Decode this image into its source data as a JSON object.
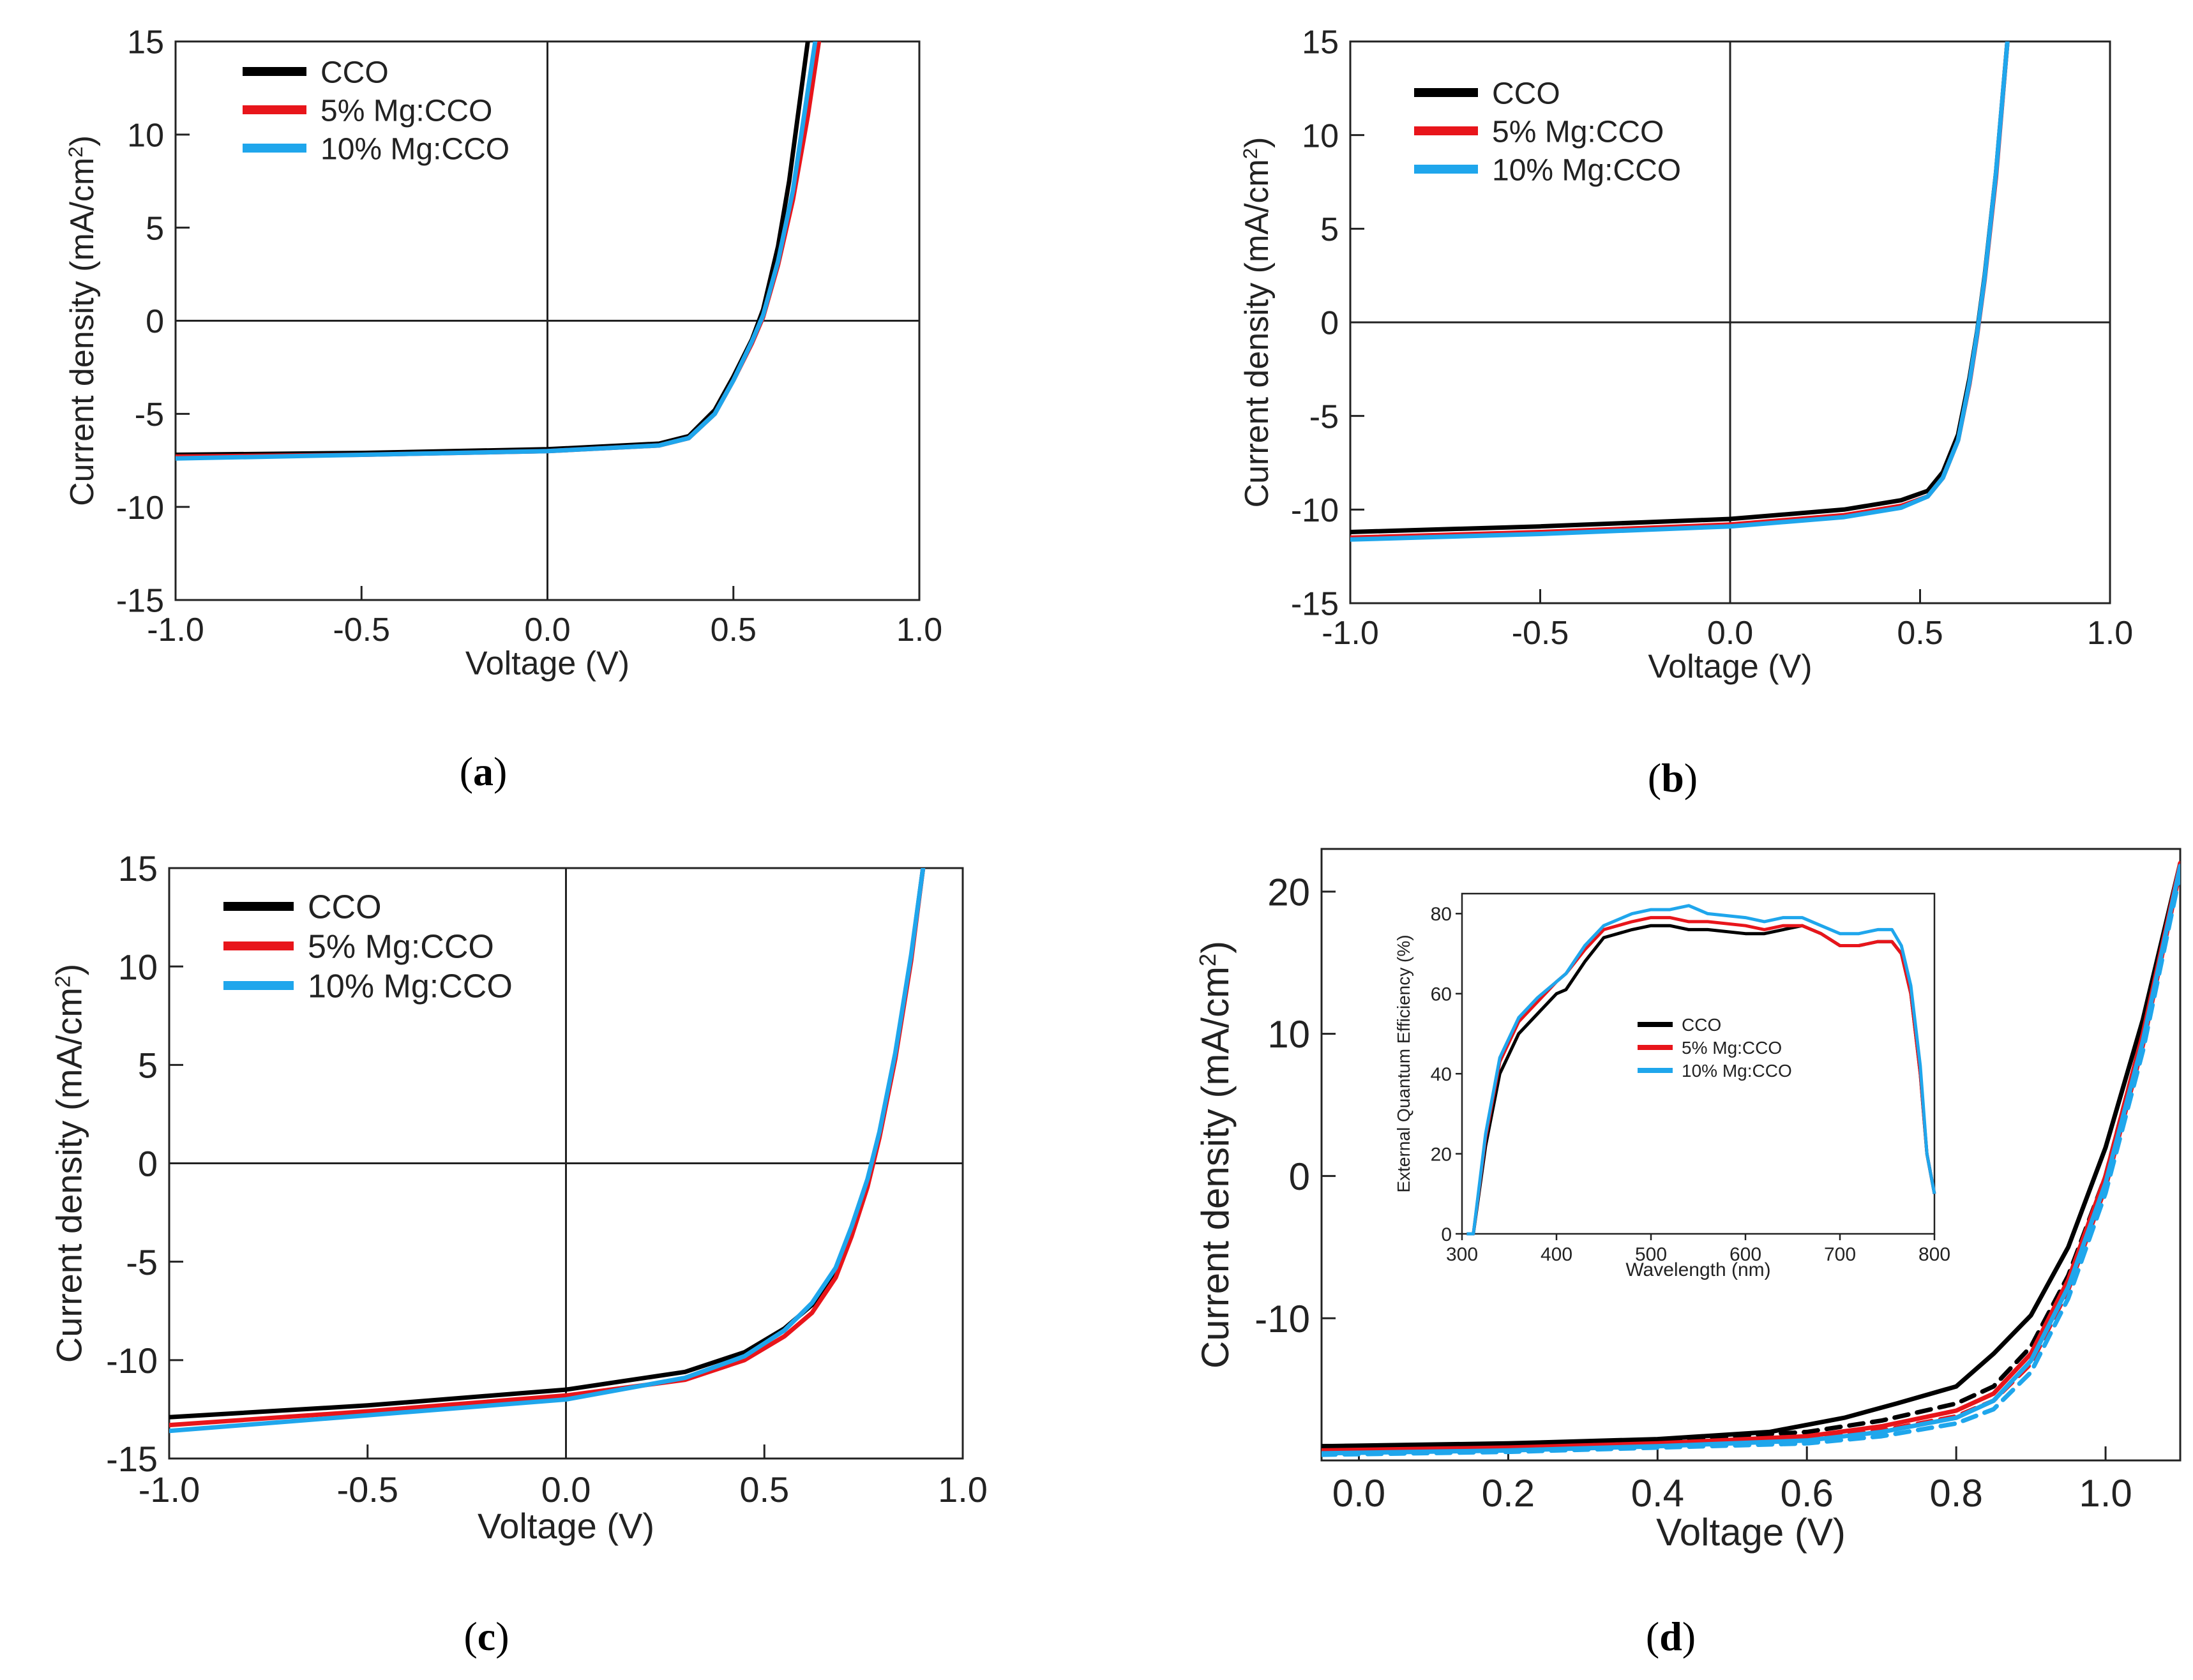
{
  "colors": {
    "CCO": "#000000",
    "Mg5": "#e8151b",
    "Mg10": "#1fa6ec",
    "axis": "#222222"
  },
  "chart_data": [
    {
      "panel": "a",
      "caption_letter": "a",
      "type": "line",
      "xlabel": "Voltage (V)",
      "ylabel": "Current density (mA/cm",
      "ylabel_sup": "2",
      "ylabel_close": ")",
      "xlim": [
        -1.0,
        1.0
      ],
      "ylim": [
        -15,
        15
      ],
      "xticks": [
        "-1.0",
        "-0.5",
        "0.0",
        "0.5",
        "1.0"
      ],
      "yticks": [
        "-15",
        "-10",
        "-5",
        "0",
        "5",
        "10",
        "15"
      ],
      "legend": [
        "CCO",
        "5% Mg:CCO",
        "10% Mg:CCO"
      ],
      "series": [
        {
          "name": "CCO",
          "color_key": "CCO",
          "x": [
            -1.0,
            -0.5,
            0.0,
            0.3,
            0.38,
            0.45,
            0.5,
            0.55,
            0.58,
            0.62,
            0.65,
            0.68,
            0.7
          ],
          "y": [
            -7.2,
            -7.1,
            -6.9,
            -6.6,
            -6.2,
            -4.8,
            -3.0,
            -1.0,
            0.6,
            4.0,
            7.5,
            12.0,
            15.0
          ]
        },
        {
          "name": "5% Mg:CCO",
          "color_key": "Mg5",
          "x": [
            -1.0,
            -0.5,
            0.0,
            0.3,
            0.38,
            0.45,
            0.5,
            0.55,
            0.58,
            0.62,
            0.66,
            0.7,
            0.73
          ],
          "y": [
            -7.3,
            -7.2,
            -7.0,
            -6.7,
            -6.3,
            -5.0,
            -3.2,
            -1.2,
            0.2,
            3.0,
            6.5,
            11.0,
            15.0
          ]
        },
        {
          "name": "10% Mg:CCO",
          "color_key": "Mg10",
          "x": [
            -1.0,
            -0.5,
            0.0,
            0.3,
            0.38,
            0.45,
            0.5,
            0.55,
            0.58,
            0.62,
            0.66,
            0.69,
            0.72
          ],
          "y": [
            -7.4,
            -7.2,
            -7.0,
            -6.7,
            -6.3,
            -5.0,
            -3.2,
            -1.1,
            0.3,
            3.2,
            7.0,
            11.0,
            15.0
          ]
        }
      ]
    },
    {
      "panel": "b",
      "caption_letter": "b",
      "type": "line",
      "xlabel": "Voltage (V)",
      "ylabel": "Current density (mA/cm",
      "ylabel_sup": "2",
      "ylabel_close": ")",
      "xlim": [
        -1.0,
        1.0
      ],
      "ylim": [
        -15,
        15
      ],
      "xticks": [
        "-1.0",
        "-0.5",
        "0.0",
        "0.5",
        "1.0"
      ],
      "yticks": [
        "-15",
        "-10",
        "-5",
        "0",
        "5",
        "10",
        "15"
      ],
      "legend": [
        "CCO",
        "5% Mg:CCO",
        "10% Mg:CCO"
      ],
      "series": [
        {
          "name": "CCO",
          "color_key": "CCO",
          "x": [
            -1.0,
            -0.5,
            0.0,
            0.3,
            0.45,
            0.52,
            0.56,
            0.6,
            0.63,
            0.65,
            0.67,
            0.7,
            0.73
          ],
          "y": [
            -11.2,
            -10.9,
            -10.5,
            -10.0,
            -9.5,
            -9.0,
            -8.0,
            -6.0,
            -3.0,
            -0.5,
            2.5,
            8.0,
            15.0
          ]
        },
        {
          "name": "5% Mg:CCO",
          "color_key": "Mg5",
          "x": [
            -1.0,
            -0.5,
            0.0,
            0.3,
            0.45,
            0.52,
            0.56,
            0.6,
            0.63,
            0.65,
            0.67,
            0.7,
            0.73
          ],
          "y": [
            -11.5,
            -11.2,
            -10.8,
            -10.3,
            -9.8,
            -9.3,
            -8.3,
            -6.3,
            -3.3,
            -0.7,
            2.3,
            7.8,
            15.0
          ]
        },
        {
          "name": "10% Mg:CCO",
          "color_key": "Mg10",
          "x": [
            -1.0,
            -0.5,
            0.0,
            0.3,
            0.45,
            0.52,
            0.56,
            0.6,
            0.63,
            0.65,
            0.67,
            0.7,
            0.73
          ],
          "y": [
            -11.6,
            -11.3,
            -10.9,
            -10.4,
            -9.9,
            -9.3,
            -8.3,
            -6.3,
            -3.2,
            -0.6,
            2.4,
            8.0,
            15.0
          ]
        }
      ]
    },
    {
      "panel": "c",
      "caption_letter": "c",
      "type": "line",
      "xlabel": "Voltage (V)",
      "ylabel": "Current density (mA/cm",
      "ylabel_sup": "2",
      "ylabel_close": ")",
      "xlim": [
        -1.0,
        1.0
      ],
      "ylim": [
        -15,
        15
      ],
      "xticks": [
        "-1.0",
        "-0.5",
        "0.0",
        "0.5",
        "1.0"
      ],
      "yticks": [
        "-15",
        "-10",
        "-5",
        "0",
        "5",
        "10",
        "15"
      ],
      "legend": [
        "CCO",
        "5% Mg:CCO",
        "10% Mg:CCO"
      ],
      "series": [
        {
          "name": "CCO",
          "color_key": "CCO",
          "x": [
            -1.0,
            -0.5,
            0.0,
            0.3,
            0.45,
            0.55,
            0.62,
            0.68,
            0.72,
            0.76,
            0.79,
            0.83,
            0.87,
            0.9
          ],
          "y": [
            -12.9,
            -12.3,
            -11.5,
            -10.6,
            -9.6,
            -8.4,
            -7.2,
            -5.5,
            -3.5,
            -1.0,
            1.5,
            5.5,
            10.5,
            15.0
          ]
        },
        {
          "name": "5% Mg:CCO",
          "color_key": "Mg5",
          "x": [
            -1.0,
            -0.5,
            0.0,
            0.3,
            0.45,
            0.55,
            0.62,
            0.68,
            0.72,
            0.76,
            0.79,
            0.83,
            0.87,
            0.9
          ],
          "y": [
            -13.3,
            -12.6,
            -11.8,
            -11.0,
            -10.0,
            -8.8,
            -7.6,
            -5.8,
            -3.7,
            -1.2,
            1.3,
            5.3,
            10.3,
            15.0
          ]
        },
        {
          "name": "10% Mg:CCO",
          "color_key": "Mg10",
          "x": [
            -1.0,
            -0.5,
            0.0,
            0.3,
            0.45,
            0.55,
            0.62,
            0.68,
            0.72,
            0.76,
            0.79,
            0.83,
            0.87,
            0.9
          ],
          "y": [
            -13.6,
            -12.8,
            -12.0,
            -10.9,
            -9.8,
            -8.5,
            -7.1,
            -5.3,
            -3.2,
            -0.8,
            1.6,
            5.6,
            10.6,
            15.0
          ]
        }
      ]
    },
    {
      "panel": "d",
      "caption_letter": "d",
      "type": "line",
      "xlabel": "Voltage (V)",
      "ylabel": "Current density (mA/cm",
      "ylabel_sup": "2",
      "ylabel_close": ")",
      "xlim": [
        -0.05,
        1.1
      ],
      "ylim": [
        -20,
        23
      ],
      "xticks": [
        "0.0",
        "0.2",
        "0.4",
        "0.6",
        "0.8",
        "1.0"
      ],
      "xtick_values": [
        0.0,
        0.2,
        0.4,
        0.6,
        0.8,
        1.0
      ],
      "yticks": [
        "-10",
        "0",
        "10",
        "20"
      ],
      "ytick_values": [
        -10,
        0,
        10,
        20
      ],
      "series": [
        {
          "name": "CCO",
          "color_key": "CCO",
          "dash": false,
          "x": [
            -0.05,
            0.2,
            0.4,
            0.55,
            0.65,
            0.72,
            0.8,
            0.85,
            0.9,
            0.95,
            1.0,
            1.05,
            1.1
          ],
          "y": [
            -19.0,
            -18.8,
            -18.5,
            -18.0,
            -17.0,
            -16.0,
            -14.8,
            -12.5,
            -9.8,
            -5.0,
            2.0,
            11.0,
            22.0
          ]
        },
        {
          "name": "CCO dashed",
          "color_key": "CCO",
          "dash": true,
          "x": [
            -0.05,
            0.2,
            0.4,
            0.6,
            0.7,
            0.8,
            0.85,
            0.9,
            0.95,
            1.0,
            1.05,
            1.1
          ],
          "y": [
            -19.0,
            -18.9,
            -18.6,
            -18.0,
            -17.2,
            -16.0,
            -14.8,
            -12.0,
            -7.0,
            0.0,
            10.0,
            22.0
          ]
        },
        {
          "name": "5% Mg:CCO",
          "color_key": "Mg5",
          "dash": false,
          "x": [
            -0.05,
            0.2,
            0.4,
            0.6,
            0.7,
            0.8,
            0.85,
            0.9,
            0.95,
            1.0,
            1.05,
            1.1
          ],
          "y": [
            -19.3,
            -19.1,
            -18.8,
            -18.3,
            -17.6,
            -16.5,
            -15.3,
            -12.5,
            -7.3,
            0.0,
            10.0,
            22.0
          ]
        },
        {
          "name": "5% Mg:CCO dashed",
          "color_key": "Mg5",
          "dash": true,
          "x": [
            -0.05,
            0.2,
            0.4,
            0.6,
            0.7,
            0.8,
            0.85,
            0.9,
            0.95,
            1.0,
            1.05,
            1.1
          ],
          "y": [
            -19.4,
            -19.2,
            -18.9,
            -18.5,
            -17.9,
            -16.9,
            -15.8,
            -13.2,
            -8.0,
            -0.8,
            9.2,
            21.5
          ]
        },
        {
          "name": "10% Mg:CCO",
          "color_key": "Mg10",
          "dash": false,
          "x": [
            -0.05,
            0.2,
            0.4,
            0.6,
            0.7,
            0.8,
            0.85,
            0.9,
            0.95,
            1.0,
            1.05,
            1.1
          ],
          "y": [
            -19.5,
            -19.3,
            -19.0,
            -18.6,
            -18.0,
            -17.0,
            -15.8,
            -13.0,
            -7.8,
            -0.5,
            9.5,
            21.8
          ]
        },
        {
          "name": "10% Mg:CCO dashed",
          "color_key": "Mg10",
          "dash": true,
          "x": [
            -0.05,
            0.2,
            0.4,
            0.6,
            0.7,
            0.8,
            0.85,
            0.9,
            0.95,
            1.0,
            1.05,
            1.1
          ],
          "y": [
            -19.6,
            -19.4,
            -19.1,
            -18.8,
            -18.3,
            -17.4,
            -16.4,
            -13.8,
            -8.6,
            -1.2,
            8.8,
            21.3
          ]
        }
      ],
      "inset": {
        "type": "line",
        "xlabel": "Wavelength (nm)",
        "ylabel": "External Quantum Efficiency (%)",
        "xlim": [
          300,
          800
        ],
        "ylim": [
          0,
          85
        ],
        "xticks": [
          "300",
          "400",
          "500",
          "600",
          "700",
          "800"
        ],
        "xtick_values": [
          300,
          400,
          500,
          600,
          700,
          800
        ],
        "yticks": [
          "0",
          "20",
          "40",
          "60",
          "80"
        ],
        "ytick_values": [
          0,
          20,
          40,
          60,
          80
        ],
        "legend": [
          "CCO",
          "5% Mg:CCO",
          "10% Mg:CCO"
        ],
        "series": [
          {
            "name": "CCO",
            "color_key": "CCO",
            "x": [
              305,
              312,
              325,
              340,
              360,
              380,
              400,
              410,
              430,
              450,
              480,
              500,
              520,
              540,
              560,
              600,
              620,
              640,
              660,
              680,
              700,
              720,
              740,
              755,
              765,
              775,
              785,
              792,
              800
            ],
            "y": [
              0,
              0,
              22,
              40,
              50,
              55,
              60,
              61,
              68,
              74,
              76,
              77,
              77,
              76,
              76,
              75,
              75,
              76,
              77,
              75,
              72,
              72,
              73,
              73,
              70,
              60,
              40,
              20,
              10
            ]
          },
          {
            "name": "5% Mg:CCO",
            "color_key": "Mg5",
            "x": [
              305,
              312,
              325,
              340,
              360,
              380,
              400,
              410,
              430,
              450,
              480,
              500,
              520,
              540,
              560,
              600,
              620,
              640,
              660,
              680,
              700,
              720,
              740,
              755,
              765,
              775,
              785,
              792,
              800
            ],
            "y": [
              0,
              0,
              24,
              43,
              53,
              58,
              63,
              65,
              71,
              76,
              78,
              79,
              79,
              78,
              78,
              77,
              76,
              77,
              77,
              75,
              72,
              72,
              73,
              73,
              70,
              60,
              40,
              20,
              10
            ]
          },
          {
            "name": "10% Mg:CCO",
            "color_key": "Mg10",
            "x": [
              305,
              312,
              325,
              340,
              360,
              380,
              400,
              410,
              430,
              450,
              480,
              500,
              520,
              540,
              560,
              600,
              620,
              640,
              660,
              680,
              700,
              720,
              740,
              755,
              765,
              775,
              785,
              792,
              800
            ],
            "y": [
              0,
              0,
              25,
              44,
              54,
              59,
              63,
              65,
              72,
              77,
              80,
              81,
              81,
              82,
              80,
              79,
              78,
              79,
              79,
              77,
              75,
              75,
              76,
              76,
              72,
              62,
              42,
              20,
              10
            ]
          }
        ]
      }
    }
  ]
}
